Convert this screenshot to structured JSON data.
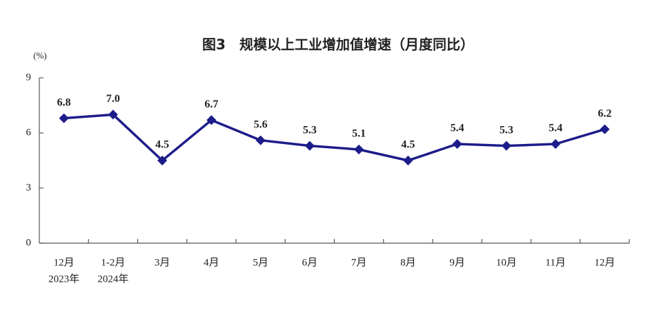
{
  "chart_data": {
    "type": "line",
    "title": "图3　规模以上工业增加值增速（月度同比）",
    "y_unit": "(%)",
    "categories": [
      "12月",
      "1-2月",
      "3月",
      "4月",
      "5月",
      "6月",
      "7月",
      "8月",
      "9月",
      "10月",
      "11月",
      "12月"
    ],
    "x_sublabels": [
      "2023年",
      "2024年",
      null,
      null,
      null,
      null,
      null,
      null,
      null,
      null,
      null,
      null
    ],
    "series": [
      {
        "name": "规模以上工业增加值增速",
        "color": "#1c1c8a",
        "values": [
          6.8,
          7.0,
          4.5,
          6.7,
          5.6,
          5.3,
          5.1,
          4.5,
          5.4,
          5.3,
          5.4,
          6.2
        ],
        "value_labels": [
          "6.8",
          "7.0",
          "4.5",
          "6.7",
          "5.6",
          "5.3",
          "5.1",
          "4.5",
          "5.4",
          "5.3",
          "5.4",
          "6.2"
        ]
      }
    ],
    "ylim": [
      0,
      9
    ],
    "yticks": [
      0,
      3,
      6,
      9
    ],
    "grid": false
  }
}
